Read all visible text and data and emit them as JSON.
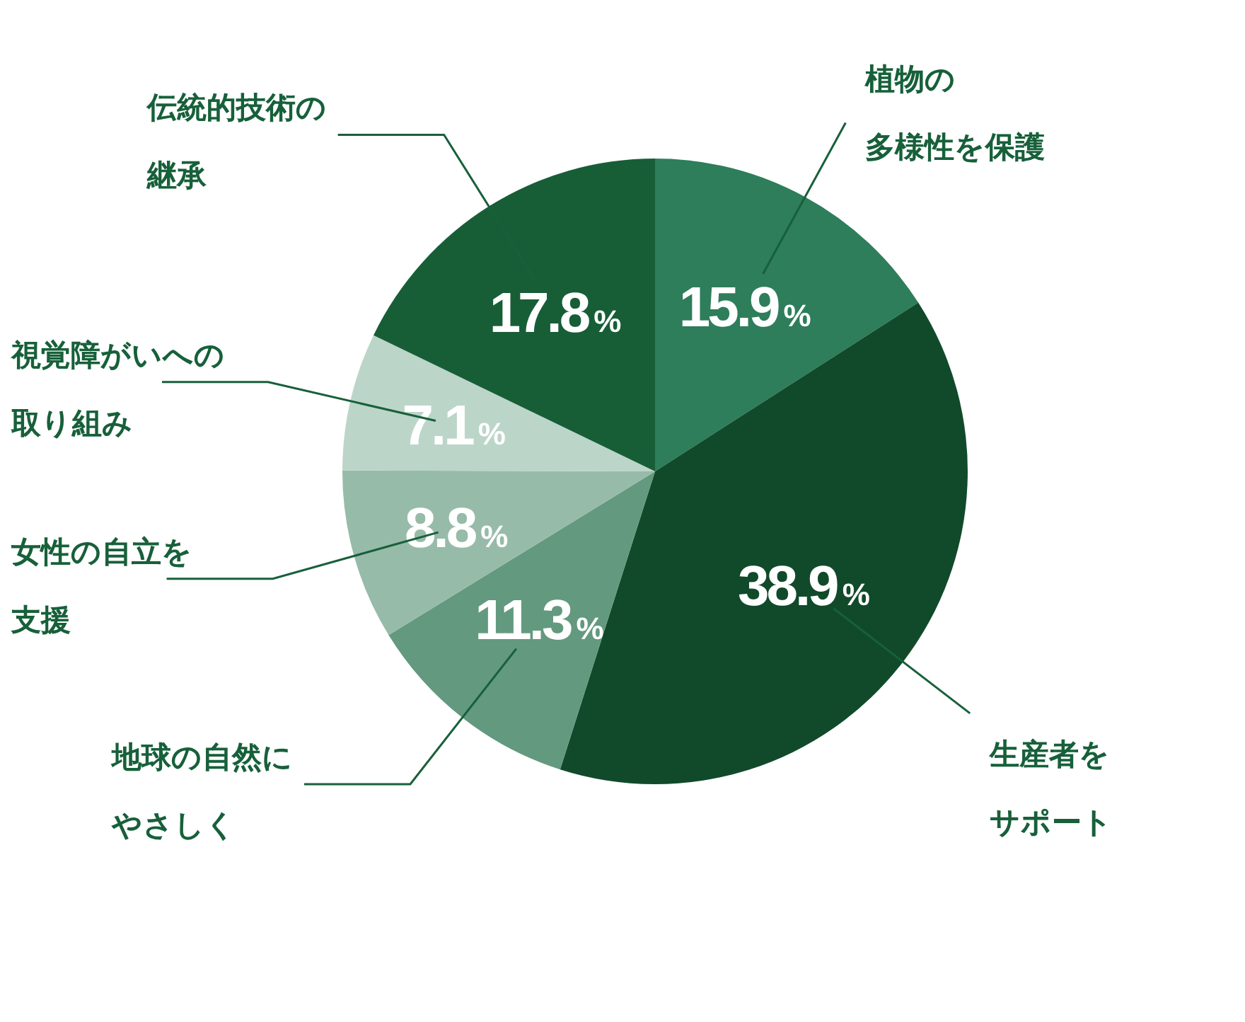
{
  "chart_data": {
    "type": "pie",
    "categories": [
      "植物の多様性を保護",
      "生産者をサポート",
      "地球の自然にやさしく",
      "女性の自立を支援",
      "視覚障がいへの取り組み",
      "伝統的技術の継承"
    ],
    "values": [
      15.9,
      38.9,
      11.3,
      8.8,
      7.1,
      17.8
    ],
    "colors": [
      "#2e7d5b",
      "#114a2a",
      "#63997f",
      "#97bba9",
      "#bcd5c9",
      "#175e37"
    ],
    "value_labels": [
      "15.9%",
      "38.9%",
      "11.3%",
      "8.8%",
      "7.1%",
      "17.8%"
    ]
  }
}
